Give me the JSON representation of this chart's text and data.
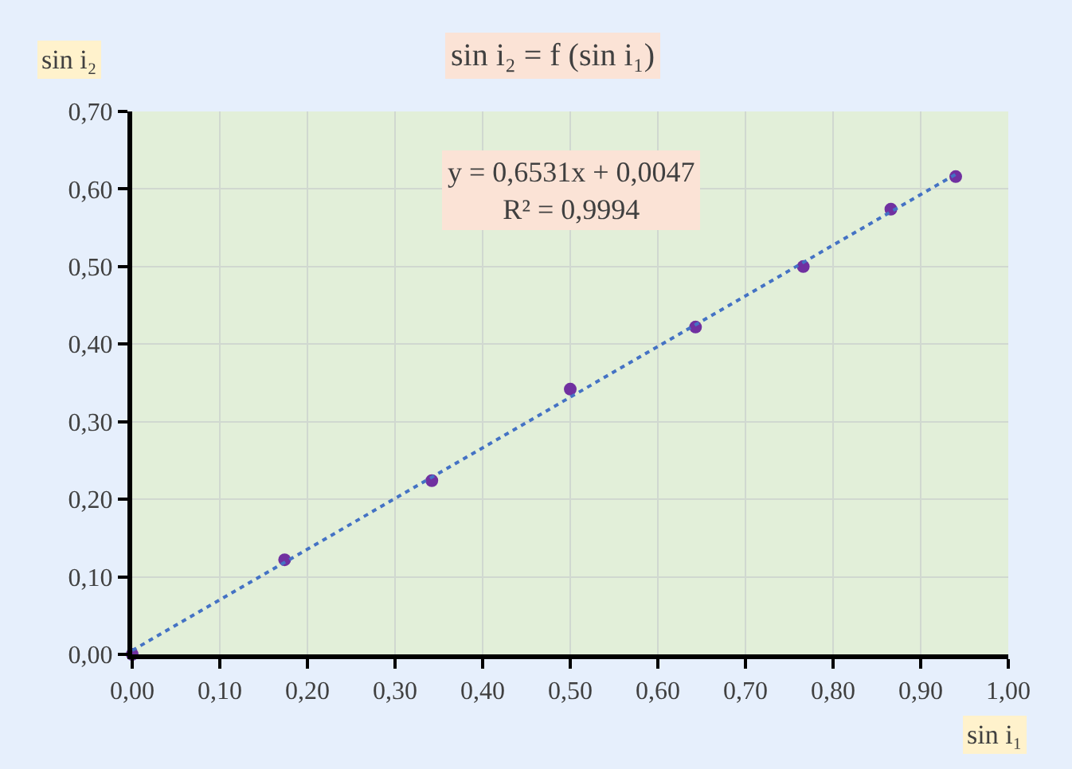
{
  "chart_data": {
    "type": "scatter",
    "title": "sin i₂ = f (sin i₁)",
    "xlabel": "sin i₁",
    "ylabel": "sin i₂",
    "annotations": [
      "y = 0,6531x + 0,0047\nR² = 0,9994"
    ],
    "series": [
      {
        "color": "#7030a0",
        "marker": "circle",
        "x": [
          0,
          0.174,
          0.342,
          0.5,
          0.643,
          0.766,
          0.866,
          0.94
        ],
        "values": [
          0,
          0.122,
          0.224,
          0.342,
          0.422,
          0.5,
          0.574,
          0.616
        ]
      },
      {
        "type": "line",
        "color": "#4472c4",
        "line_style": "dotted",
        "x": [
          0,
          0.94
        ],
        "values": [
          0.005,
          0.619
        ]
      }
    ],
    "xlim": [
      0,
      1
    ],
    "ylim": [
      0,
      0.7
    ],
    "xticks": [
      {
        "value": 0,
        "label": "0,00"
      },
      {
        "value": 0.1,
        "label": "0,10"
      },
      {
        "value": 0.2,
        "label": "0,20"
      },
      {
        "value": 0.3,
        "label": "0,30"
      },
      {
        "value": 0.4,
        "label": "0,40"
      },
      {
        "value": 0.5,
        "label": "0,50"
      },
      {
        "value": 0.6,
        "label": "0,60"
      },
      {
        "value": 0.7,
        "label": "0,70"
      },
      {
        "value": 0.8,
        "label": "0,80"
      },
      {
        "value": 0.9,
        "label": "0,90"
      },
      {
        "value": 1,
        "label": "1,00"
      }
    ],
    "yticks": [
      {
        "value": 0,
        "label": "0,00"
      },
      {
        "value": 0.1,
        "label": "0,10"
      },
      {
        "value": 0.2,
        "label": "0,20"
      },
      {
        "value": 0.3,
        "label": "0,30"
      },
      {
        "value": 0.4,
        "label": "0,40"
      },
      {
        "value": 0.5,
        "label": "0,50"
      },
      {
        "value": 0.6,
        "label": "0,60"
      },
      {
        "value": 0.7,
        "label": "0,70"
      }
    ],
    "grid": true
  }
}
